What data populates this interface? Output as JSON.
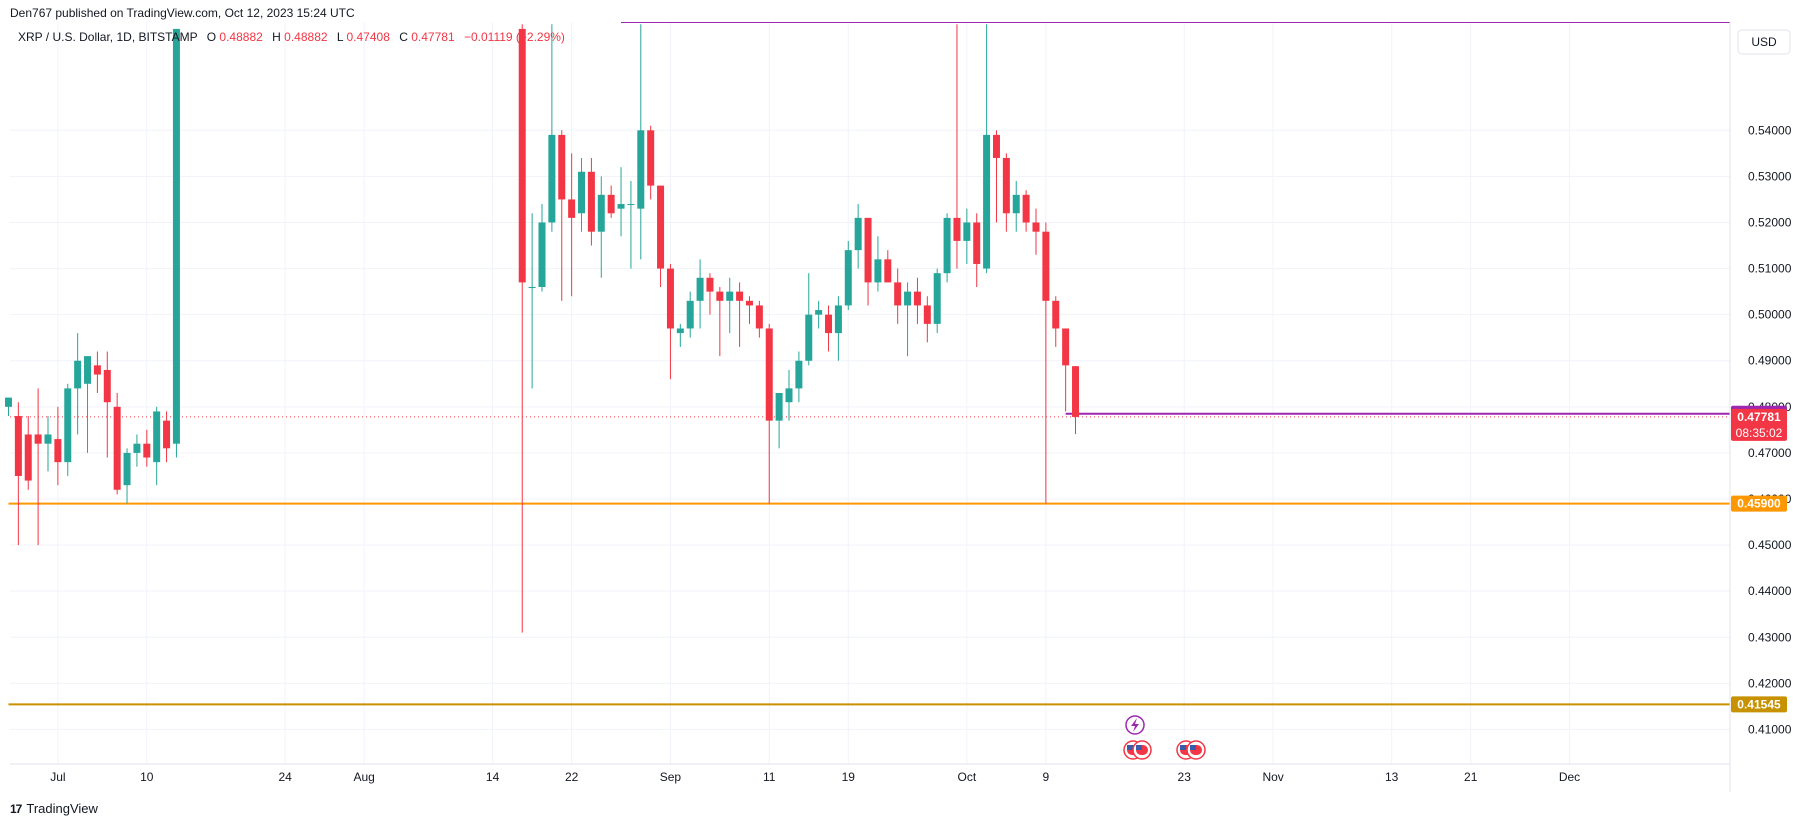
{
  "header": {
    "published": "Den767 published on TradingView.com, Oct 12, 2023 15:24 UTC"
  },
  "legend": {
    "symbol": "XRP / U.S. Dollar, 1D, BITSTAMP",
    "o_label": "O",
    "o_value": "0.48882",
    "h_label": "H",
    "h_value": "0.48882",
    "l_label": "L",
    "l_value": "0.47408",
    "c_label": "C",
    "c_value": "0.47781",
    "change": "−0.01119 (−2.29%)"
  },
  "currency": "USD",
  "footer": {
    "brand": "TradingView",
    "logo": "17"
  },
  "colors": {
    "up": "#26a69a",
    "down": "#f23645",
    "purple": "#9c27b0",
    "orange": "#ff9800",
    "gold": "#c79100",
    "grid": "#f0f3fa",
    "axis": "#e0e3eb"
  },
  "events": {
    "icons": [
      "lightning-icon",
      "us-flag-icon",
      "us-flag-icon",
      "us-flag-icon",
      "us-flag-icon"
    ]
  },
  "chart_data": {
    "type": "candlestick",
    "title": "XRP / U.S. Dollar, 1D, BITSTAMP",
    "ylim": [
      0.4025,
      0.5635
    ],
    "y_ticks": [
      "0.54000",
      "0.53000",
      "0.52000",
      "0.51000",
      "0.50000",
      "0.49000",
      "0.48000",
      "0.47000",
      "0.46000",
      "0.45000",
      "0.44000",
      "0.43000",
      "0.42000",
      "0.41000"
    ],
    "x_ticks": [
      {
        "label": "Jul",
        "date": "2023-07-01"
      },
      {
        "label": "10",
        "date": "2023-07-10"
      },
      {
        "label": "24",
        "date": "2023-07-24"
      },
      {
        "label": "Aug",
        "date": "2023-08-01"
      },
      {
        "label": "14",
        "date": "2023-08-14"
      },
      {
        "label": "22",
        "date": "2023-08-22"
      },
      {
        "label": "Sep",
        "date": "2023-09-01"
      },
      {
        "label": "11",
        "date": "2023-09-11"
      },
      {
        "label": "19",
        "date": "2023-09-19"
      },
      {
        "label": "Oct",
        "date": "2023-10-01"
      },
      {
        "label": "9",
        "date": "2023-10-09"
      },
      {
        "label": "23",
        "date": "2023-10-23"
      },
      {
        "label": "Nov",
        "date": "2023-11-01"
      },
      {
        "label": "13",
        "date": "2023-11-13"
      },
      {
        "label": "21",
        "date": "2023-11-21"
      },
      {
        "label": "Dec",
        "date": "2023-12-01"
      }
    ],
    "price_labels": [
      {
        "value": 0.4785,
        "label": "0.47850",
        "color": "#9c27b0"
      },
      {
        "value": 0.47781,
        "label": "0.47781",
        "sublabel": "08:35:02",
        "color": "#f23645"
      },
      {
        "value": 0.459,
        "label": "0.45900",
        "color": "#ff9800"
      },
      {
        "value": 0.41545,
        "label": "0.41545",
        "color": "#c79100"
      }
    ],
    "horizontal_lines": [
      {
        "value": 0.459,
        "color": "#ff9800",
        "from": "2023-06-26"
      },
      {
        "value": 0.41545,
        "color": "#c79100",
        "from": "2023-06-26"
      },
      {
        "value": 0.5635,
        "color": "#9c27b0",
        "from": "2023-08-27"
      },
      {
        "value": 0.4785,
        "color": "#9c27b0",
        "from": "2023-10-11"
      }
    ],
    "candles": [
      {
        "date": "2023-06-26",
        "o": 0.48,
        "h": 0.482,
        "l": 0.478,
        "c": 0.482
      },
      {
        "date": "2023-06-27",
        "o": 0.478,
        "h": 0.481,
        "l": 0.45,
        "c": 0.465
      },
      {
        "date": "2023-06-28",
        "o": 0.474,
        "h": 0.478,
        "l": 0.462,
        "c": 0.464
      },
      {
        "date": "2023-06-29",
        "o": 0.474,
        "h": 0.484,
        "l": 0.45,
        "c": 0.472
      },
      {
        "date": "2023-06-30",
        "o": 0.472,
        "h": 0.478,
        "l": 0.466,
        "c": 0.474
      },
      {
        "date": "2023-07-01",
        "o": 0.473,
        "h": 0.48,
        "l": 0.463,
        "c": 0.468
      },
      {
        "date": "2023-07-02",
        "o": 0.468,
        "h": 0.485,
        "l": 0.465,
        "c": 0.484
      },
      {
        "date": "2023-07-03",
        "o": 0.484,
        "h": 0.496,
        "l": 0.474,
        "c": 0.49
      },
      {
        "date": "2023-07-04",
        "o": 0.485,
        "h": 0.491,
        "l": 0.47,
        "c": 0.491
      },
      {
        "date": "2023-07-05",
        "o": 0.489,
        "h": 0.492,
        "l": 0.483,
        "c": 0.487
      },
      {
        "date": "2023-07-06",
        "o": 0.488,
        "h": 0.492,
        "l": 0.469,
        "c": 0.481
      },
      {
        "date": "2023-07-07",
        "o": 0.48,
        "h": 0.483,
        "l": 0.461,
        "c": 0.462
      },
      {
        "date": "2023-07-08",
        "o": 0.463,
        "h": 0.471,
        "l": 0.459,
        "c": 0.47
      },
      {
        "date": "2023-07-09",
        "o": 0.47,
        "h": 0.474,
        "l": 0.467,
        "c": 0.472
      },
      {
        "date": "2023-07-10",
        "o": 0.472,
        "h": 0.475,
        "l": 0.467,
        "c": 0.469
      },
      {
        "date": "2023-07-11",
        "o": 0.468,
        "h": 0.48,
        "l": 0.463,
        "c": 0.479
      },
      {
        "date": "2023-07-12",
        "o": 0.477,
        "h": 0.479,
        "l": 0.468,
        "c": 0.471
      },
      {
        "date": "2023-07-13",
        "o": 0.472,
        "h": 0.562,
        "l": 0.469,
        "c": 0.562
      },
      {
        "date": "2023-08-17",
        "o": 0.562,
        "h": 0.563,
        "l": 0.431,
        "c": 0.507
      },
      {
        "date": "2023-08-18",
        "o": 0.506,
        "h": 0.522,
        "l": 0.484,
        "c": 0.506
      },
      {
        "date": "2023-08-19",
        "o": 0.506,
        "h": 0.524,
        "l": 0.505,
        "c": 0.52
      },
      {
        "date": "2023-08-20",
        "o": 0.52,
        "h": 0.563,
        "l": 0.518,
        "c": 0.539
      },
      {
        "date": "2023-08-21",
        "o": 0.539,
        "h": 0.54,
        "l": 0.503,
        "c": 0.525
      },
      {
        "date": "2023-08-22",
        "o": 0.525,
        "h": 0.535,
        "l": 0.504,
        "c": 0.521
      },
      {
        "date": "2023-08-23",
        "o": 0.522,
        "h": 0.534,
        "l": 0.518,
        "c": 0.531
      },
      {
        "date": "2023-08-24",
        "o": 0.531,
        "h": 0.534,
        "l": 0.515,
        "c": 0.518
      },
      {
        "date": "2023-08-25",
        "o": 0.518,
        "h": 0.53,
        "l": 0.508,
        "c": 0.526
      },
      {
        "date": "2023-08-26",
        "o": 0.526,
        "h": 0.528,
        "l": 0.521,
        "c": 0.522
      },
      {
        "date": "2023-08-27",
        "o": 0.523,
        "h": 0.532,
        "l": 0.517,
        "c": 0.524
      },
      {
        "date": "2023-08-28",
        "o": 0.524,
        "h": 0.529,
        "l": 0.51,
        "c": 0.524
      },
      {
        "date": "2023-08-29",
        "o": 0.523,
        "h": 0.563,
        "l": 0.512,
        "c": 0.54
      },
      {
        "date": "2023-08-30",
        "o": 0.54,
        "h": 0.541,
        "l": 0.525,
        "c": 0.528
      },
      {
        "date": "2023-08-31",
        "o": 0.528,
        "h": 0.528,
        "l": 0.506,
        "c": 0.51
      },
      {
        "date": "2023-09-01",
        "o": 0.51,
        "h": 0.511,
        "l": 0.486,
        "c": 0.497
      },
      {
        "date": "2023-09-02",
        "o": 0.496,
        "h": 0.498,
        "l": 0.493,
        "c": 0.497
      },
      {
        "date": "2023-09-03",
        "o": 0.497,
        "h": 0.505,
        "l": 0.495,
        "c": 0.503
      },
      {
        "date": "2023-09-04",
        "o": 0.503,
        "h": 0.512,
        "l": 0.497,
        "c": 0.508
      },
      {
        "date": "2023-09-05",
        "o": 0.508,
        "h": 0.509,
        "l": 0.5,
        "c": 0.505
      },
      {
        "date": "2023-09-06",
        "o": 0.505,
        "h": 0.506,
        "l": 0.491,
        "c": 0.503
      },
      {
        "date": "2023-09-07",
        "o": 0.503,
        "h": 0.508,
        "l": 0.496,
        "c": 0.505
      },
      {
        "date": "2023-09-08",
        "o": 0.505,
        "h": 0.507,
        "l": 0.493,
        "c": 0.503
      },
      {
        "date": "2023-09-09",
        "o": 0.503,
        "h": 0.504,
        "l": 0.498,
        "c": 0.502
      },
      {
        "date": "2023-09-10",
        "o": 0.502,
        "h": 0.503,
        "l": 0.495,
        "c": 0.497
      },
      {
        "date": "2023-09-11",
        "o": 0.497,
        "h": 0.498,
        "l": 0.459,
        "c": 0.477
      },
      {
        "date": "2023-09-12",
        "o": 0.477,
        "h": 0.483,
        "l": 0.471,
        "c": 0.483
      },
      {
        "date": "2023-09-13",
        "o": 0.481,
        "h": 0.488,
        "l": 0.477,
        "c": 0.484
      },
      {
        "date": "2023-09-14",
        "o": 0.484,
        "h": 0.492,
        "l": 0.481,
        "c": 0.49
      },
      {
        "date": "2023-09-15",
        "o": 0.49,
        "h": 0.509,
        "l": 0.489,
        "c": 0.5
      },
      {
        "date": "2023-09-16",
        "o": 0.5,
        "h": 0.503,
        "l": 0.497,
        "c": 0.501
      },
      {
        "date": "2023-09-17",
        "o": 0.5,
        "h": 0.502,
        "l": 0.492,
        "c": 0.496
      },
      {
        "date": "2023-09-18",
        "o": 0.496,
        "h": 0.504,
        "l": 0.49,
        "c": 0.502
      },
      {
        "date": "2023-09-19",
        "o": 0.502,
        "h": 0.516,
        "l": 0.501,
        "c": 0.514
      },
      {
        "date": "2023-09-20",
        "o": 0.514,
        "h": 0.524,
        "l": 0.51,
        "c": 0.521
      },
      {
        "date": "2023-09-21",
        "o": 0.521,
        "h": 0.521,
        "l": 0.502,
        "c": 0.507
      },
      {
        "date": "2023-09-22",
        "o": 0.507,
        "h": 0.517,
        "l": 0.505,
        "c": 0.512
      },
      {
        "date": "2023-09-23",
        "o": 0.512,
        "h": 0.514,
        "l": 0.507,
        "c": 0.507
      },
      {
        "date": "2023-09-24",
        "o": 0.507,
        "h": 0.51,
        "l": 0.498,
        "c": 0.502
      },
      {
        "date": "2023-09-25",
        "o": 0.502,
        "h": 0.507,
        "l": 0.491,
        "c": 0.505
      },
      {
        "date": "2023-09-26",
        "o": 0.505,
        "h": 0.508,
        "l": 0.498,
        "c": 0.502
      },
      {
        "date": "2023-09-27",
        "o": 0.502,
        "h": 0.504,
        "l": 0.494,
        "c": 0.498
      },
      {
        "date": "2023-09-28",
        "o": 0.498,
        "h": 0.51,
        "l": 0.496,
        "c": 0.509
      },
      {
        "date": "2023-09-29",
        "o": 0.509,
        "h": 0.522,
        "l": 0.507,
        "c": 0.521
      },
      {
        "date": "2023-09-30",
        "o": 0.521,
        "h": 0.563,
        "l": 0.51,
        "c": 0.516
      },
      {
        "date": "2023-10-01",
        "o": 0.516,
        "h": 0.523,
        "l": 0.511,
        "c": 0.52
      },
      {
        "date": "2023-10-02",
        "o": 0.52,
        "h": 0.522,
        "l": 0.506,
        "c": 0.511
      },
      {
        "date": "2023-10-03",
        "o": 0.51,
        "h": 0.563,
        "l": 0.509,
        "c": 0.539
      },
      {
        "date": "2023-10-04",
        "o": 0.539,
        "h": 0.54,
        "l": 0.52,
        "c": 0.534
      },
      {
        "date": "2023-10-05",
        "o": 0.534,
        "h": 0.535,
        "l": 0.518,
        "c": 0.522
      },
      {
        "date": "2023-10-06",
        "o": 0.522,
        "h": 0.529,
        "l": 0.518,
        "c": 0.526
      },
      {
        "date": "2023-10-07",
        "o": 0.526,
        "h": 0.527,
        "l": 0.518,
        "c": 0.52
      },
      {
        "date": "2023-10-08",
        "o": 0.52,
        "h": 0.523,
        "l": 0.513,
        "c": 0.518
      },
      {
        "date": "2023-10-09",
        "o": 0.518,
        "h": 0.52,
        "l": 0.459,
        "c": 0.503
      },
      {
        "date": "2023-10-10",
        "o": 0.503,
        "h": 0.504,
        "l": 0.493,
        "c": 0.497
      },
      {
        "date": "2023-10-11",
        "o": 0.497,
        "h": 0.497,
        "l": 0.479,
        "c": 0.489
      },
      {
        "date": "2023-10-12",
        "o": 0.48882,
        "h": 0.48882,
        "l": 0.47408,
        "c": 0.47781
      }
    ]
  }
}
